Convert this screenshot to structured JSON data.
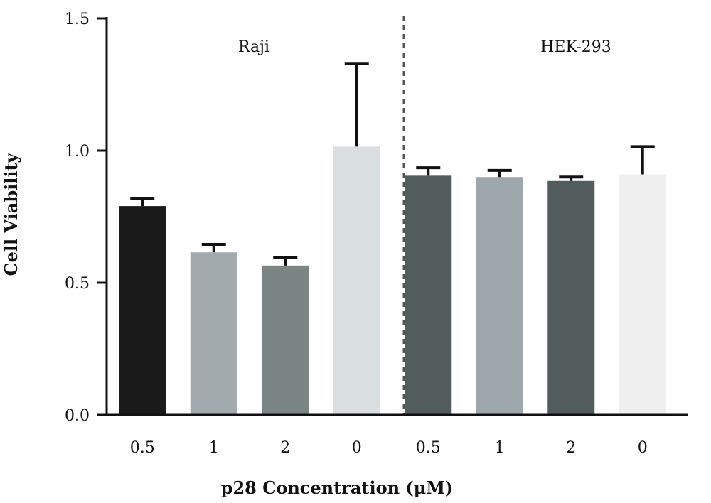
{
  "chart_data": {
    "type": "bar",
    "xlabel": "p28 Concentration (μM)",
    "ylabel": "Cell Viability",
    "ylim": [
      0,
      1.5
    ],
    "yticks": [
      "0.0",
      "0.5",
      "1.0",
      "1.5"
    ],
    "grid": false,
    "groups": [
      {
        "name": "Raji",
        "categories": [
          "0.5",
          "1",
          "2",
          "0"
        ],
        "values": [
          0.79,
          0.615,
          0.565,
          1.015
        ],
        "errors": [
          0.03,
          0.03,
          0.03,
          0.315
        ],
        "colors": [
          "#1a1a1a",
          "#a3aaad",
          "#7b8583",
          "#d9dfde"
        ]
      },
      {
        "name": "HEK-293",
        "categories": [
          "0.5",
          "1",
          "2",
          "0"
        ],
        "values": [
          0.905,
          0.9,
          0.885,
          0.91
        ],
        "errors": [
          0.03,
          0.025,
          0.015,
          0.105
        ],
        "colors": [
          "#535c5d",
          "#9ea8ac",
          "#535c5d",
          "#efefef"
        ]
      }
    ]
  }
}
